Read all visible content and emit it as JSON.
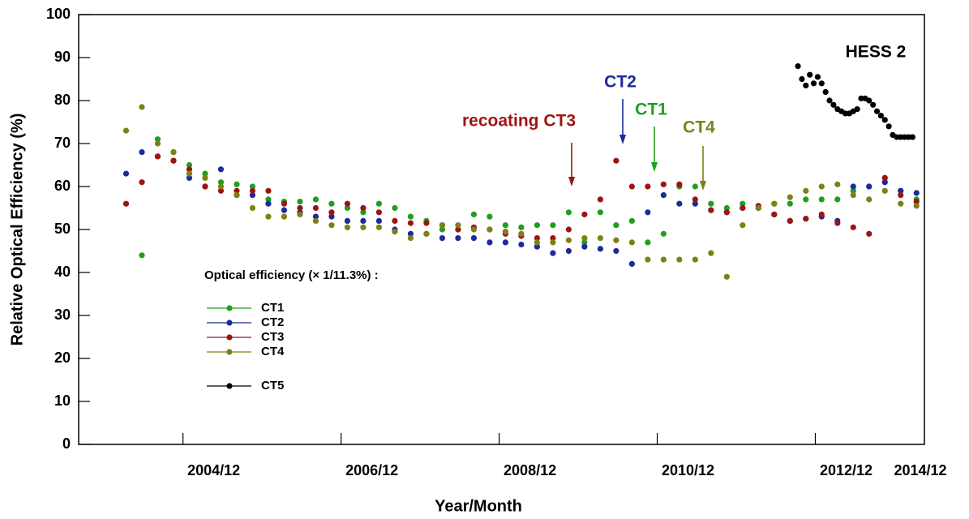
{
  "chart_data": {
    "type": "scatter",
    "x_label": "Year/Month",
    "y_label": "Relative Optical Efficiency (%)",
    "legend_title": "Optical efficiency (× 1/11.3%) :",
    "xlim": [
      2003.6,
      2014.3
    ],
    "ylim": [
      0,
      100
    ],
    "xticks": [
      {
        "value": 2004.92,
        "label": "2004/12"
      },
      {
        "value": 2006.92,
        "label": "2006/12"
      },
      {
        "value": 2008.92,
        "label": "2008/12"
      },
      {
        "value": 2010.92,
        "label": "2010/12"
      },
      {
        "value": 2012.92,
        "label": "2012/12"
      },
      {
        "value": 2014.92,
        "label": "2014/12"
      }
    ],
    "yticks": [
      0,
      10,
      20,
      30,
      40,
      50,
      60,
      70,
      80,
      90,
      100
    ],
    "x": [
      2004.2,
      2004.4,
      2004.6,
      2004.8,
      2005.0,
      2005.2,
      2005.4,
      2005.6,
      2005.8,
      2006.0,
      2006.2,
      2006.4,
      2006.6,
      2006.8,
      2007.0,
      2007.2,
      2007.4,
      2007.6,
      2007.8,
      2008.0,
      2008.2,
      2008.4,
      2008.6,
      2008.8,
      2009.0,
      2009.2,
      2009.4,
      2009.6,
      2009.8,
      2010.0,
      2010.2,
      2010.4,
      2010.6,
      2010.8,
      2011.0,
      2011.2,
      2011.4,
      2011.6,
      2011.8,
      2012.0,
      2012.2,
      2012.4,
      2012.6,
      2012.8,
      2013.0,
      2013.2,
      2013.4,
      2013.6,
      2013.8,
      2014.0,
      2014.2
    ],
    "series": [
      {
        "name": "CT1",
        "color": "#1f9e1f",
        "values": [
          null,
          44,
          71,
          68,
          65,
          63,
          61,
          60.5,
          60,
          57,
          56.5,
          56.5,
          57,
          56,
          55,
          54,
          56,
          55,
          53,
          52,
          50,
          50,
          53.5,
          53,
          51,
          50.5,
          51,
          51,
          54,
          47,
          54,
          51,
          52,
          47,
          49,
          60,
          60,
          56,
          55,
          56,
          55,
          56,
          56,
          57,
          57,
          57,
          59,
          60,
          62,
          59,
          57
        ]
      },
      {
        "name": "CT2",
        "color": "#1c2a9c",
        "values": [
          63,
          68,
          67,
          66,
          62,
          60,
          64,
          58,
          58,
          56,
          54.5,
          54,
          53,
          53,
          52,
          52,
          52,
          50,
          49,
          49,
          48,
          48,
          48,
          47,
          47,
          46.5,
          46,
          44.5,
          45,
          46,
          45.5,
          45,
          42,
          54,
          58,
          56,
          56,
          54.5,
          54,
          55,
          55,
          53.5,
          52,
          52.5,
          53,
          52,
          60,
          60,
          61,
          59,
          58.5
        ]
      },
      {
        "name": "CT3",
        "color": "#9e1414",
        "values": [
          56,
          61,
          67,
          66,
          64,
          60,
          59,
          59,
          59,
          59,
          56,
          55,
          55,
          54,
          56,
          55,
          54,
          52,
          51.5,
          51.5,
          51,
          50,
          50.5,
          50,
          49,
          48.5,
          48,
          48,
          50,
          53.5,
          57,
          66,
          60,
          60,
          60.5,
          60.5,
          57,
          54.5,
          54,
          55,
          55.5,
          53.5,
          52,
          52.5,
          53.5,
          51.5,
          50.5,
          49,
          62,
          58,
          56.5
        ]
      },
      {
        "name": "CT4",
        "color": "#7f7f14",
        "values": [
          73,
          78.5,
          70,
          68,
          63,
          62,
          60,
          58,
          55,
          53,
          53,
          53.5,
          52,
          51,
          50.5,
          50.5,
          50.5,
          49.5,
          48,
          49,
          51,
          51,
          50,
          50,
          49.5,
          49,
          47,
          47,
          47.5,
          48,
          48,
          47.5,
          47,
          43,
          43,
          43,
          43,
          44.5,
          39,
          51,
          55,
          56,
          57.5,
          59,
          60,
          60.5,
          58,
          57,
          59,
          56,
          55.5
        ]
      },
      {
        "name": "CT5",
        "color": "#000000",
        "x": [
          2012.7,
          2012.75,
          2012.8,
          2012.85,
          2012.9,
          2012.95,
          2013.0,
          2013.05,
          2013.1,
          2013.15,
          2013.2,
          2013.25,
          2013.3,
          2013.35,
          2013.4,
          2013.45,
          2013.5,
          2013.55,
          2013.6,
          2013.65,
          2013.7,
          2013.75,
          2013.8,
          2013.85,
          2013.9,
          2013.95,
          2014.0,
          2014.05,
          2014.1,
          2014.15
        ],
        "values": [
          88,
          85,
          83.5,
          86,
          84,
          85.5,
          84,
          82,
          80,
          79,
          78,
          77.5,
          77,
          77,
          77.5,
          78,
          80.5,
          80.5,
          80,
          79,
          77.5,
          76.5,
          75.5,
          74,
          72,
          71.5,
          71.5,
          71.5,
          71.5,
          71.5
        ]
      }
    ],
    "annotations": [
      {
        "text": "recoating CT3",
        "color": "#9e1414"
      },
      {
        "text": "CT2",
        "color": "#1c2a9c"
      },
      {
        "text": "CT1",
        "color": "#1f9e1f"
      },
      {
        "text": "CT4",
        "color": "#7f7f14"
      },
      {
        "text": "HESS 2",
        "color": "#000000"
      }
    ]
  }
}
